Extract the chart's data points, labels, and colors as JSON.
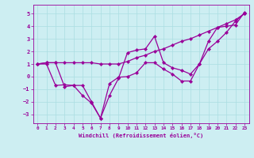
{
  "xlabel": "Windchill (Refroidissement éolien,°C)",
  "bg_color": "#cdeef2",
  "grid_color": "#aadde2",
  "line_color": "#990099",
  "xlim": [
    -0.5,
    23.5
  ],
  "ylim": [
    -3.7,
    5.7
  ],
  "yticks": [
    -3,
    -2,
    -1,
    0,
    1,
    2,
    3,
    4,
    5
  ],
  "xticks": [
    0,
    1,
    2,
    3,
    4,
    5,
    6,
    7,
    8,
    9,
    10,
    11,
    12,
    13,
    14,
    15,
    16,
    17,
    18,
    19,
    20,
    21,
    22,
    23
  ],
  "series": [
    {
      "x": [
        0,
        1,
        2,
        3,
        4,
        5,
        6,
        7,
        8,
        9,
        10,
        11,
        12,
        13,
        14,
        15,
        16,
        17,
        18,
        19,
        20,
        21,
        22,
        23
      ],
      "y": [
        1.0,
        1.1,
        1.1,
        1.1,
        1.1,
        1.1,
        1.1,
        1.0,
        1.0,
        1.0,
        1.2,
        1.5,
        1.7,
        2.0,
        2.2,
        2.5,
        2.8,
        3.0,
        3.3,
        3.6,
        3.9,
        4.2,
        4.5,
        5.0
      ]
    },
    {
      "x": [
        0,
        1,
        2,
        3,
        4,
        5,
        6,
        7,
        8,
        9,
        10,
        11,
        12,
        13,
        14,
        15,
        16,
        17,
        18,
        19,
        20,
        21,
        22,
        23
      ],
      "y": [
        1.0,
        1.1,
        1.1,
        -0.8,
        -0.7,
        -1.5,
        -2.1,
        -3.3,
        -1.5,
        -0.15,
        1.9,
        2.1,
        2.2,
        3.2,
        1.1,
        0.7,
        0.5,
        0.2,
        1.0,
        2.8,
        3.9,
        4.0,
        4.1,
        5.1
      ]
    },
    {
      "x": [
        0,
        1,
        2,
        3,
        4,
        5,
        6,
        7,
        8,
        9,
        10,
        11,
        12,
        13,
        14,
        15,
        16,
        17,
        18,
        19,
        20,
        21,
        22,
        23
      ],
      "y": [
        1.0,
        1.0,
        -0.7,
        -0.65,
        -0.7,
        -0.7,
        -2.0,
        -3.3,
        -0.55,
        -0.05,
        0.0,
        0.3,
        1.1,
        1.1,
        0.6,
        0.2,
        -0.35,
        -0.35,
        1.0,
        2.2,
        2.8,
        3.5,
        4.4,
        5.0
      ]
    }
  ]
}
